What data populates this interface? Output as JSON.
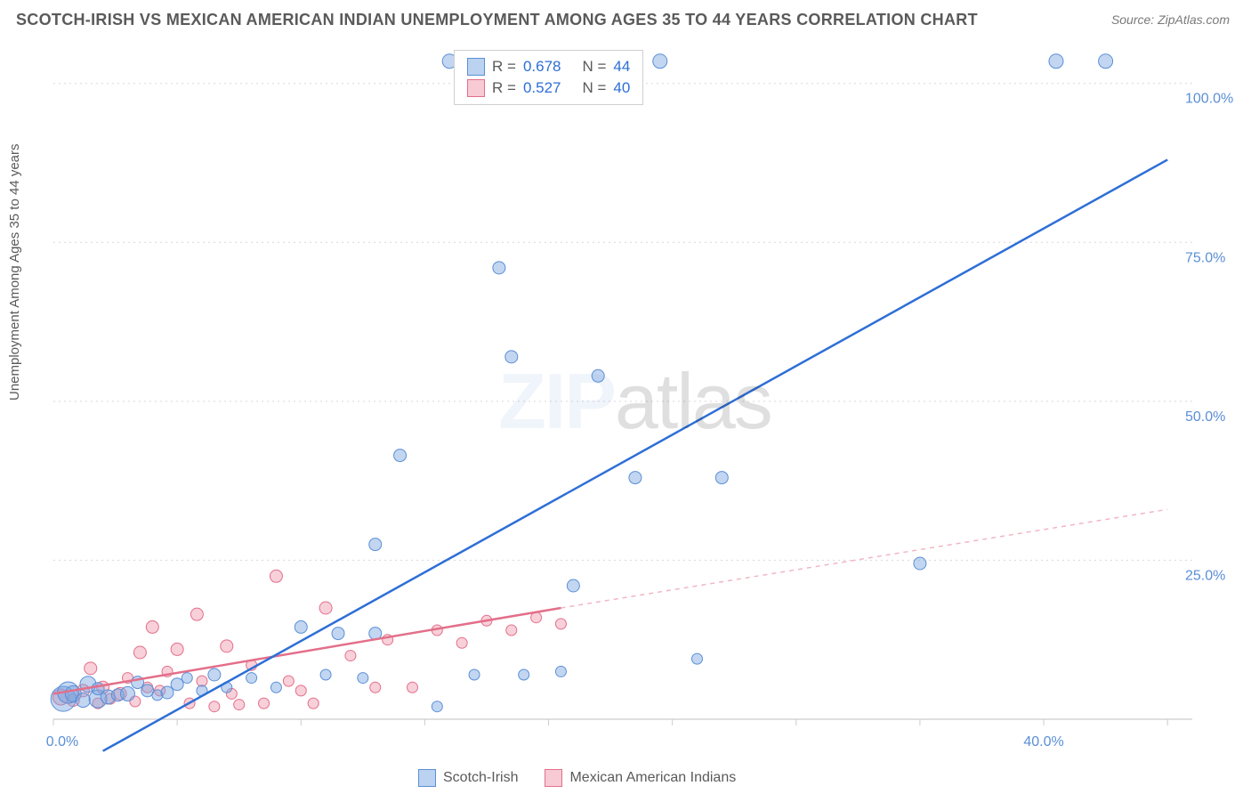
{
  "title": "SCOTCH-IRISH VS MEXICAN AMERICAN INDIAN UNEMPLOYMENT AMONG AGES 35 TO 44 YEARS CORRELATION CHART",
  "source": "Source: ZipAtlas.com",
  "ylabel": "Unemployment Among Ages 35 to 44 years",
  "watermark_a": "ZIP",
  "watermark_b": "atlas",
  "chart": {
    "type": "scatter",
    "xlim": [
      0,
      46
    ],
    "ylim": [
      0,
      105
    ],
    "xticks": [
      0,
      5,
      10,
      15,
      20,
      25,
      30,
      35,
      40,
      45
    ],
    "xtick_labels": {
      "0": "0.0%",
      "40": "40.0%"
    },
    "yticks": [
      25,
      50,
      75,
      100
    ],
    "ytick_labels": {
      "25": "25.0%",
      "50": "50.0%",
      "75": "75.0%",
      "100": "100.0%"
    },
    "grid_color": "#d8d8d8",
    "background_color": "#ffffff",
    "series": [
      {
        "name": "Scotch-Irish",
        "color_fill": "rgba(120,165,225,0.45)",
        "color_stroke": "#5b8fd6",
        "R": "0.678",
        "N": "44",
        "trend": {
          "x1": 2,
          "y1": -5,
          "x2": 45,
          "y2": 88,
          "color": "#2e6fd6",
          "width": 2.5
        },
        "points": [
          {
            "x": 0.4,
            "y": 3.2,
            "r": 14
          },
          {
            "x": 0.6,
            "y": 4.2,
            "r": 12
          },
          {
            "x": 0.8,
            "y": 4.0,
            "r": 9
          },
          {
            "x": 1.2,
            "y": 3.0,
            "r": 8
          },
          {
            "x": 1.4,
            "y": 5.5,
            "r": 9
          },
          {
            "x": 1.8,
            "y": 3.2,
            "r": 10
          },
          {
            "x": 1.8,
            "y": 4.8,
            "r": 7
          },
          {
            "x": 2.2,
            "y": 3.5,
            "r": 8
          },
          {
            "x": 2.6,
            "y": 3.8,
            "r": 7
          },
          {
            "x": 3.0,
            "y": 4.0,
            "r": 8
          },
          {
            "x": 3.4,
            "y": 5.8,
            "r": 7
          },
          {
            "x": 3.8,
            "y": 4.5,
            "r": 7
          },
          {
            "x": 4.2,
            "y": 3.8,
            "r": 6
          },
          {
            "x": 4.6,
            "y": 4.2,
            "r": 7
          },
          {
            "x": 5.0,
            "y": 5.5,
            "r": 7
          },
          {
            "x": 5.4,
            "y": 6.5,
            "r": 6
          },
          {
            "x": 6.0,
            "y": 4.5,
            "r": 6
          },
          {
            "x": 6.5,
            "y": 7.0,
            "r": 7
          },
          {
            "x": 7.0,
            "y": 5.0,
            "r": 6
          },
          {
            "x": 8.0,
            "y": 6.5,
            "r": 6
          },
          {
            "x": 9.0,
            "y": 5.0,
            "r": 6
          },
          {
            "x": 10.0,
            "y": 14.5,
            "r": 7
          },
          {
            "x": 11.0,
            "y": 7.0,
            "r": 6
          },
          {
            "x": 11.5,
            "y": 13.5,
            "r": 7
          },
          {
            "x": 12.5,
            "y": 6.5,
            "r": 6
          },
          {
            "x": 13.0,
            "y": 27.5,
            "r": 7
          },
          {
            "x": 13.0,
            "y": 13.5,
            "r": 7
          },
          {
            "x": 14.0,
            "y": 41.5,
            "r": 7
          },
          {
            "x": 15.5,
            "y": 2.0,
            "r": 6
          },
          {
            "x": 16.0,
            "y": 103.5,
            "r": 8
          },
          {
            "x": 17.0,
            "y": 7.0,
            "r": 6
          },
          {
            "x": 18.0,
            "y": 71.0,
            "r": 7
          },
          {
            "x": 18.5,
            "y": 57.0,
            "r": 7
          },
          {
            "x": 19.0,
            "y": 7.0,
            "r": 6
          },
          {
            "x": 20.5,
            "y": 7.5,
            "r": 6
          },
          {
            "x": 21.0,
            "y": 21.0,
            "r": 7
          },
          {
            "x": 22.0,
            "y": 54.0,
            "r": 7
          },
          {
            "x": 23.5,
            "y": 38.0,
            "r": 7
          },
          {
            "x": 24.5,
            "y": 103.5,
            "r": 8
          },
          {
            "x": 26.0,
            "y": 9.5,
            "r": 6
          },
          {
            "x": 27.0,
            "y": 38.0,
            "r": 7
          },
          {
            "x": 35.0,
            "y": 24.5,
            "r": 7
          },
          {
            "x": 40.5,
            "y": 103.5,
            "r": 8
          },
          {
            "x": 42.5,
            "y": 103.5,
            "r": 8
          }
        ]
      },
      {
        "name": "Mexican American Indians",
        "color_fill": "rgba(240,150,170,0.45)",
        "color_stroke": "#e36f8a",
        "R": "0.527",
        "N": "40",
        "trend_solid": {
          "x1": 0,
          "y1": 4,
          "x2": 20.5,
          "y2": 17.5,
          "color": "#e36f8a",
          "width": 2.5
        },
        "trend_dash": {
          "x1": 20.5,
          "y1": 17.5,
          "x2": 45,
          "y2": 33,
          "color": "#f1b6c4",
          "width": 1.5
        },
        "points": [
          {
            "x": 0.3,
            "y": 3.5,
            "r": 9
          },
          {
            "x": 0.8,
            "y": 3.0,
            "r": 7
          },
          {
            "x": 1.2,
            "y": 4.5,
            "r": 7
          },
          {
            "x": 1.5,
            "y": 8.0,
            "r": 7
          },
          {
            "x": 1.8,
            "y": 2.5,
            "r": 6
          },
          {
            "x": 2.0,
            "y": 5.0,
            "r": 7
          },
          {
            "x": 2.3,
            "y": 3.2,
            "r": 6
          },
          {
            "x": 2.7,
            "y": 4.0,
            "r": 7
          },
          {
            "x": 3.0,
            "y": 6.5,
            "r": 6
          },
          {
            "x": 3.3,
            "y": 2.8,
            "r": 6
          },
          {
            "x": 3.5,
            "y": 10.5,
            "r": 7
          },
          {
            "x": 3.8,
            "y": 5.0,
            "r": 6
          },
          {
            "x": 4.0,
            "y": 14.5,
            "r": 7
          },
          {
            "x": 4.3,
            "y": 4.5,
            "r": 6
          },
          {
            "x": 4.6,
            "y": 7.5,
            "r": 6
          },
          {
            "x": 5.0,
            "y": 11.0,
            "r": 7
          },
          {
            "x": 5.5,
            "y": 2.5,
            "r": 6
          },
          {
            "x": 5.8,
            "y": 16.5,
            "r": 7
          },
          {
            "x": 6.0,
            "y": 6.0,
            "r": 6
          },
          {
            "x": 6.5,
            "y": 2.0,
            "r": 6
          },
          {
            "x": 7.0,
            "y": 11.5,
            "r": 7
          },
          {
            "x": 7.2,
            "y": 4.0,
            "r": 6
          },
          {
            "x": 7.5,
            "y": 2.3,
            "r": 6
          },
          {
            "x": 8.0,
            "y": 8.5,
            "r": 6
          },
          {
            "x": 8.5,
            "y": 2.5,
            "r": 6
          },
          {
            "x": 9.0,
            "y": 22.5,
            "r": 7
          },
          {
            "x": 9.5,
            "y": 6.0,
            "r": 6
          },
          {
            "x": 10.0,
            "y": 4.5,
            "r": 6
          },
          {
            "x": 10.5,
            "y": 2.5,
            "r": 6
          },
          {
            "x": 11.0,
            "y": 17.5,
            "r": 7
          },
          {
            "x": 12.0,
            "y": 10.0,
            "r": 6
          },
          {
            "x": 13.0,
            "y": 5.0,
            "r": 6
          },
          {
            "x": 13.5,
            "y": 12.5,
            "r": 6
          },
          {
            "x": 14.5,
            "y": 5.0,
            "r": 6
          },
          {
            "x": 15.5,
            "y": 14.0,
            "r": 6
          },
          {
            "x": 16.5,
            "y": 12.0,
            "r": 6
          },
          {
            "x": 17.5,
            "y": 15.5,
            "r": 6
          },
          {
            "x": 18.5,
            "y": 14.0,
            "r": 6
          },
          {
            "x": 19.5,
            "y": 16.0,
            "r": 6
          },
          {
            "x": 20.5,
            "y": 15.0,
            "r": 6
          }
        ]
      }
    ]
  },
  "legend_top": {
    "rows": [
      {
        "swatch": "blue",
        "lbl_r": "R =",
        "r": "0.678",
        "lbl_n": "N =",
        "n": "44"
      },
      {
        "swatch": "pink",
        "lbl_r": "R =",
        "r": "0.527",
        "lbl_n": "N =",
        "n": "40"
      }
    ]
  },
  "legend_bottom": {
    "items": [
      {
        "swatch": "blue",
        "label": "Scotch-Irish"
      },
      {
        "swatch": "pink",
        "label": "Mexican American Indians"
      }
    ]
  }
}
